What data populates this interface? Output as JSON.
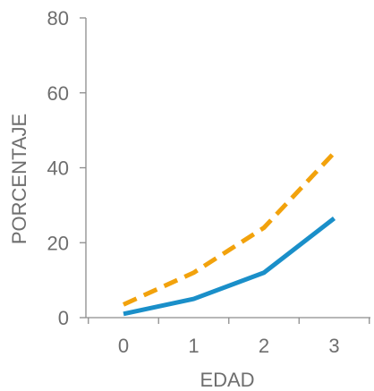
{
  "chart_data": {
    "type": "line",
    "categories": [
      "0",
      "1",
      "2",
      "3"
    ],
    "series": [
      {
        "values": [
          1,
          5,
          12,
          26.5
        ],
        "color": "#1a8fc9",
        "dashed": false
      },
      {
        "values": [
          3.5,
          12,
          24,
          44
        ],
        "color": "#f2a20c",
        "dashed": true
      }
    ],
    "xlabel": "EDAD",
    "ylabel": "PORCENTAJE",
    "ylim": [
      0,
      80
    ],
    "yticks": [
      "0",
      "20",
      "40",
      "60",
      "80"
    ],
    "grid": false,
    "legend": "none"
  }
}
